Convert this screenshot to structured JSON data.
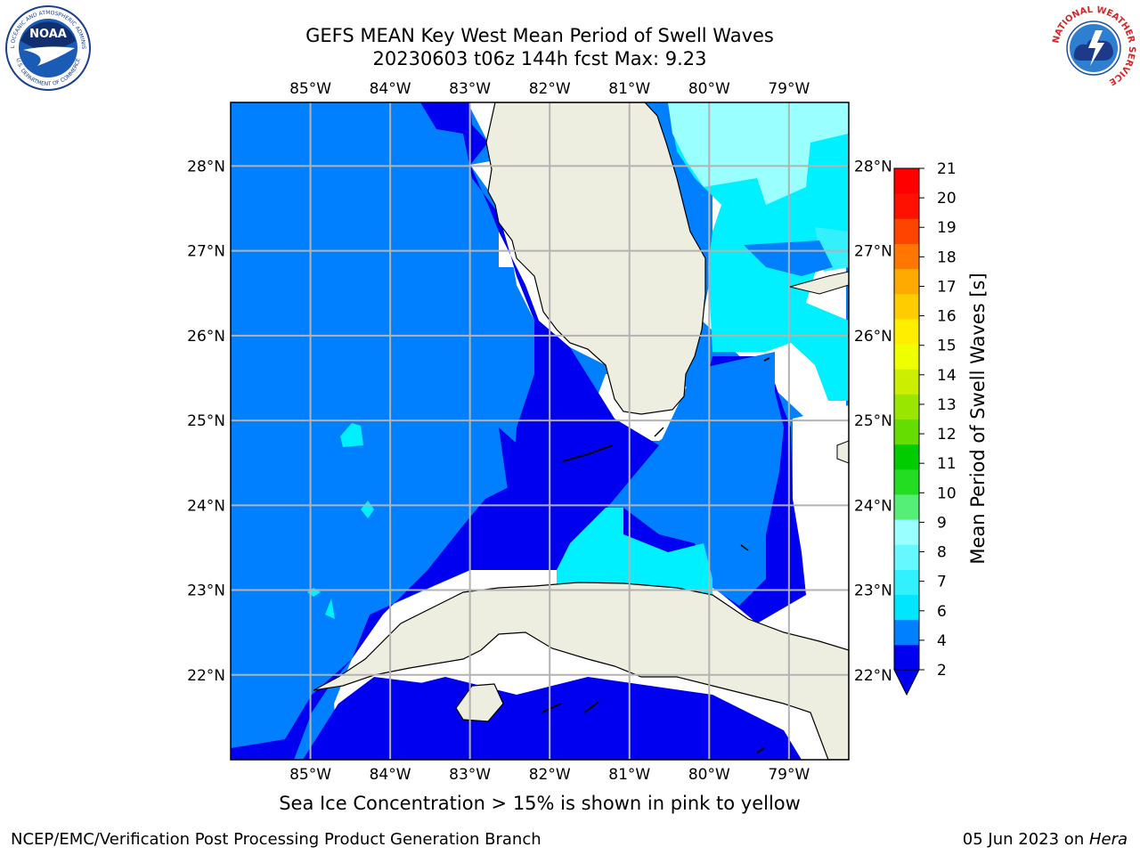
{
  "header": {
    "title_line1": "GEFS MEAN Key West Mean Period of Swell Waves",
    "title_line2": "20230603 t06z 144h fcst   Max: 9.23"
  },
  "logos": {
    "noaa_text": "NOAA",
    "noaa_ring_top": "NATIONAL OCEANIC AND ATMOSPHERIC ADMINISTRATION",
    "noaa_ring_bottom": "U.S. DEPARTMENT OF COMMERCE",
    "nws_ring": "NATIONAL WEATHER SERVICE"
  },
  "map": {
    "lon_labels": [
      "85°W",
      "84°W",
      "83°W",
      "82°W",
      "81°W",
      "80°W",
      "79°W"
    ],
    "lat_labels": [
      "28°N",
      "27°N",
      "26°N",
      "25°N",
      "24°N",
      "23°N",
      "22°N"
    ],
    "lon_range": [
      -86.0,
      -78.25
    ],
    "lat_range": [
      21.0,
      28.75
    ]
  },
  "colorbar": {
    "label": "Mean Period of Swell Waves [s]",
    "ticks": [
      "2",
      "4",
      "6",
      "7",
      "8",
      "9",
      "10",
      "11",
      "12",
      "13",
      "14",
      "15",
      "16",
      "17",
      "18",
      "19",
      "20",
      "21"
    ],
    "colors": [
      "#0000f0",
      "#0080ff",
      "#00e6ff",
      "#33f0ff",
      "#66f8ff",
      "#99ffff",
      "#55ee77",
      "#22dd22",
      "#00cc00",
      "#66dd00",
      "#99e600",
      "#ccee00",
      "#eeff00",
      "#ffee00",
      "#ffcc00",
      "#ffaa00",
      "#ff7700",
      "#ff4400",
      "#ff1100",
      "#ff0000"
    ]
  },
  "colors": {
    "land": "#eeeee0",
    "deep_blue": "#0000f0",
    "mid_blue": "#0080ff",
    "cyan": "#00f0ff",
    "light_cyan": "#99ffff",
    "grid": "#b3b3b3"
  },
  "footer": {
    "note": "Sea Ice Concentration > 15% is shown in pink to yellow",
    "credit": "NCEP/EMC/Verification Post Processing Product Generation Branch",
    "date_prefix": "05 Jun 2023 on ",
    "date_host": "Hera"
  }
}
